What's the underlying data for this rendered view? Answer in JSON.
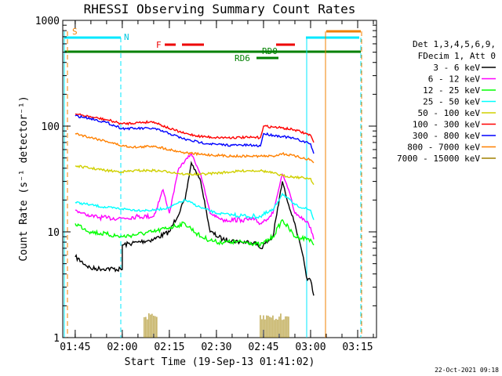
{
  "chart_data": {
    "type": "line",
    "title": "RHESSI Observing Summary Count Rates",
    "xlabel": "Start Time (19-Sep-13 01:41:02)",
    "ylabel": "Count Rate (s⁻¹ detector⁻¹)",
    "yscale": "log",
    "ylim": [
      1,
      1000
    ],
    "yticks": [
      {
        "value": 1,
        "label": "1"
      },
      {
        "value": 10,
        "label": "10"
      },
      {
        "value": 100,
        "label": "100"
      },
      {
        "value": 1000,
        "label": "1000"
      }
    ],
    "xlim": [
      "01:41:02",
      "03:21:00"
    ],
    "xticks": [
      "01:45",
      "02:00",
      "02:15",
      "02:30",
      "02:45",
      "03:00",
      "03:15"
    ],
    "legend_header": [
      "Det 1,3,4,5,6,9,",
      "FDecim 1, Att 0"
    ],
    "legend_position": "right",
    "timestamp": "22-Oct-2021 09:18",
    "series": [
      {
        "name": "3 - 6 keV",
        "color": "#000000",
        "x": [
          "01:45",
          "01:50",
          "01:55",
          "02:00",
          "02:00",
          "02:05",
          "02:10",
          "02:15",
          "02:20",
          "02:22",
          "02:25",
          "02:28",
          "02:32",
          "02:38",
          "02:42",
          "02:44",
          "02:48",
          "02:51",
          "02:53",
          "02:55",
          "02:58",
          "02:59",
          "03:00",
          "03:01"
        ],
        "y": [
          5.8,
          4.5,
          4.5,
          4.4,
          7.5,
          8.0,
          8.5,
          10,
          20,
          45,
          30,
          10,
          8.5,
          8.0,
          8.0,
          7.0,
          9.0,
          30,
          18,
          12,
          5.0,
          3.5,
          3.5,
          2.5
        ]
      },
      {
        "name": "6 - 12 keV",
        "color": "#ff00ff",
        "x": [
          "01:45",
          "01:50",
          "01:55",
          "02:00",
          "02:05",
          "02:10",
          "02:13",
          "02:15",
          "02:18",
          "02:22",
          "02:25",
          "02:28",
          "02:32",
          "02:38",
          "02:42",
          "02:44",
          "02:48",
          "02:51",
          "02:53",
          "02:55",
          "02:58",
          "03:00",
          "03:01"
        ],
        "y": [
          16,
          14,
          13.5,
          13.5,
          14,
          14,
          25,
          15,
          40,
          55,
          35,
          15,
          13,
          13,
          13,
          12,
          15,
          35,
          25,
          15,
          13,
          11,
          8.5
        ]
      },
      {
        "name": "12 - 25 keV",
        "color": "#00ff00",
        "x": [
          "01:45",
          "01:50",
          "01:55",
          "02:00",
          "02:05",
          "02:10",
          "02:15",
          "02:20",
          "02:25",
          "02:30",
          "02:35",
          "02:40",
          "02:44",
          "02:48",
          "02:51",
          "02:55",
          "03:00",
          "03:01"
        ],
        "y": [
          12,
          10,
          9.5,
          9.0,
          9.5,
          10,
          11,
          12,
          9.0,
          8.0,
          8.0,
          8.0,
          7.5,
          9.0,
          13,
          9.0,
          8.5,
          7.5
        ]
      },
      {
        "name": "25 - 50 keV",
        "color": "#00ffff",
        "x": [
          "01:45",
          "01:50",
          "01:55",
          "02:00",
          "02:05",
          "02:10",
          "02:15",
          "02:20",
          "02:25",
          "02:30",
          "02:35",
          "02:40",
          "02:44",
          "02:48",
          "02:51",
          "02:55",
          "03:00",
          "03:01"
        ],
        "y": [
          19,
          18,
          17,
          16.5,
          16,
          16,
          17,
          20,
          17,
          15,
          14.5,
          14,
          14,
          16,
          23,
          18,
          16,
          13
        ]
      },
      {
        "name": "50 - 100 keV",
        "color": "#d0d000",
        "x": [
          "01:45",
          "01:50",
          "01:55",
          "02:00",
          "02:05",
          "02:10",
          "02:15",
          "02:20",
          "02:25",
          "02:30",
          "02:35",
          "02:40",
          "02:44",
          "02:48",
          "02:51",
          "02:55",
          "03:00",
          "03:01"
        ],
        "y": [
          42,
          40,
          38,
          37,
          38,
          38,
          37,
          35,
          35,
          36,
          37,
          38,
          38,
          36,
          34,
          33,
          32,
          28
        ]
      },
      {
        "name": "100 - 300 keV",
        "color": "#ff0000",
        "x": [
          "01:45",
          "01:50",
          "01:55",
          "02:00",
          "02:05",
          "02:10",
          "02:15",
          "02:20",
          "02:25",
          "02:30",
          "02:35",
          "02:40",
          "02:44",
          "02:45",
          "02:48",
          "02:51",
          "02:55",
          "03:00",
          "03:01"
        ],
        "y": [
          130,
          122,
          115,
          105,
          108,
          110,
          95,
          85,
          80,
          78,
          78,
          78,
          78,
          100,
          98,
          96,
          92,
          82,
          70
        ]
      },
      {
        "name": "300 - 800 keV",
        "color": "#0000ff",
        "x": [
          "01:45",
          "01:50",
          "01:55",
          "02:00",
          "02:05",
          "02:10",
          "02:15",
          "02:20",
          "02:25",
          "02:30",
          "02:35",
          "02:40",
          "02:44",
          "02:45",
          "02:48",
          "02:51",
          "02:55",
          "03:00",
          "03:01"
        ],
        "y": [
          125,
          118,
          108,
          95,
          95,
          95,
          85,
          75,
          70,
          67,
          66,
          66,
          65,
          85,
          82,
          80,
          76,
          68,
          55
        ]
      },
      {
        "name": "800 - 7000 keV",
        "color": "#ff8000",
        "x": [
          "01:45",
          "01:50",
          "01:55",
          "02:00",
          "02:05",
          "02:10",
          "02:15",
          "02:20",
          "02:25",
          "02:30",
          "02:35",
          "02:40",
          "02:44",
          "02:48",
          "02:51",
          "02:55",
          "03:00",
          "03:01"
        ],
        "y": [
          85,
          78,
          72,
          65,
          63,
          65,
          60,
          56,
          54,
          53,
          52,
          52,
          52,
          52,
          55,
          52,
          48,
          45
        ]
      },
      {
        "name": "7000 - 15000 keV",
        "color": "#a08000",
        "x": [],
        "y": []
      }
    ],
    "bursts_7000_15000_keV": [
      {
        "from": "02:07",
        "to": "02:11",
        "y_top": 1.7
      },
      {
        "from": "02:44",
        "to": "02:53",
        "y_top": 1.7
      }
    ],
    "flag_labels": [
      "S",
      "N",
      "F",
      "RD0",
      "RD6"
    ]
  }
}
